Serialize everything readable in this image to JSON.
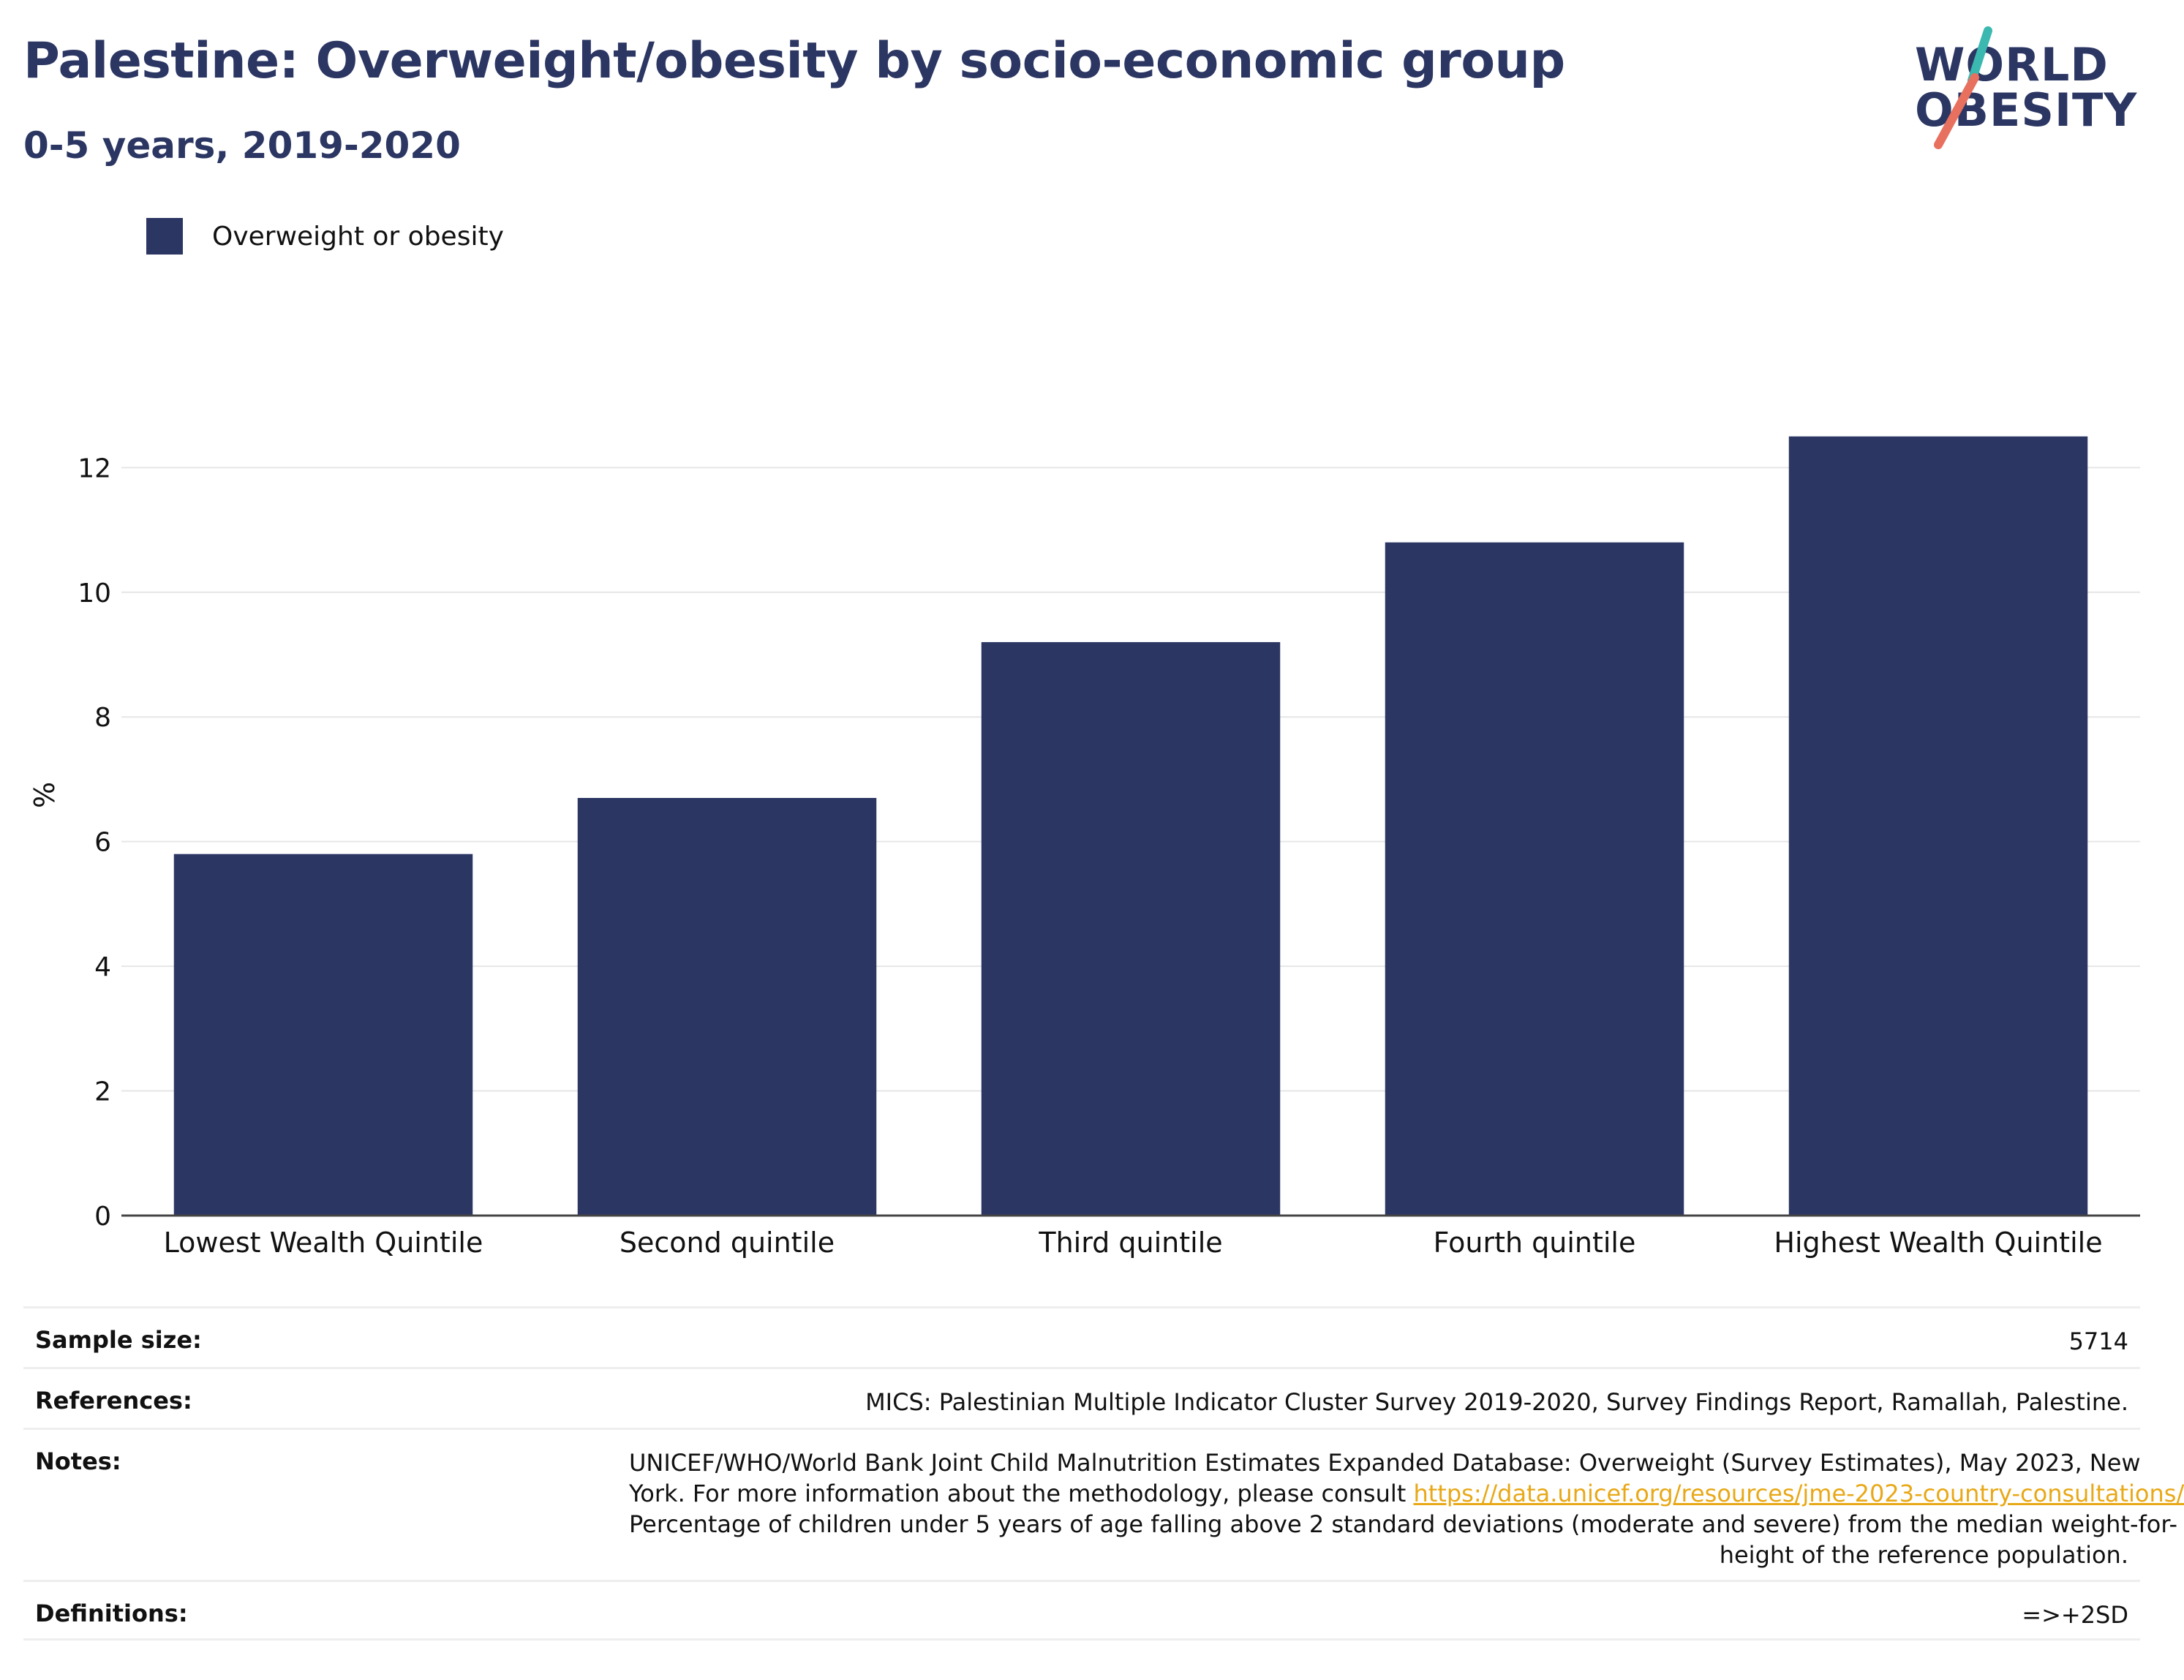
{
  "header": {
    "title": "Palestine: Overweight/obesity by socio-economic group",
    "subtitle": "0-5 years, 2019-2020"
  },
  "logo": {
    "line1": "WORLD",
    "line2": "OBESITY",
    "accent_colors": [
      "#3bb8b0",
      "#e8705e"
    ]
  },
  "legend": {
    "label": "Overweight or obesity",
    "color": "#2b3663"
  },
  "chart_data": {
    "type": "bar",
    "categories": [
      "Lowest Wealth Quintile",
      "Second quintile",
      "Third quintile",
      "Fourth quintile",
      "Highest Wealth Quintile"
    ],
    "series": [
      {
        "name": "Overweight or obesity",
        "values": [
          5.8,
          6.7,
          9.2,
          10.8,
          12.5
        ],
        "color": "#2b3663"
      }
    ],
    "ylabel": "%",
    "ylim": [
      0,
      13.4
    ],
    "yticks": [
      0,
      2,
      4,
      6,
      8,
      10,
      12
    ],
    "grid": true,
    "legend_position": "top-left"
  },
  "info": {
    "sample_size_label": "Sample size:",
    "sample_size_value": "5714",
    "references_label": "References:",
    "references_value": "MICS: Palestinian Multiple Indicator Cluster Survey 2019-2020, Survey Findings Report, Ramallah, Palestine.",
    "notes_label": "Notes:",
    "notes_line1": "UNICEF/WHO/World Bank Joint Child Malnutrition Estimates Expanded Database: Overweight (Survey Estimates), May 2023, New",
    "notes_line2_prefix": "York. For more information about the methodology, please consult ",
    "notes_link": "https://data.unicef.org/resources/jme-2023-country-consultations/",
    "notes_line3": "Percentage of children under 5 years of age falling above 2 standard deviations (moderate and severe) from the median weight-for-",
    "notes_line4": "height of the reference population.",
    "definitions_label": "Definitions:",
    "definitions_value": "=>+2SD"
  }
}
